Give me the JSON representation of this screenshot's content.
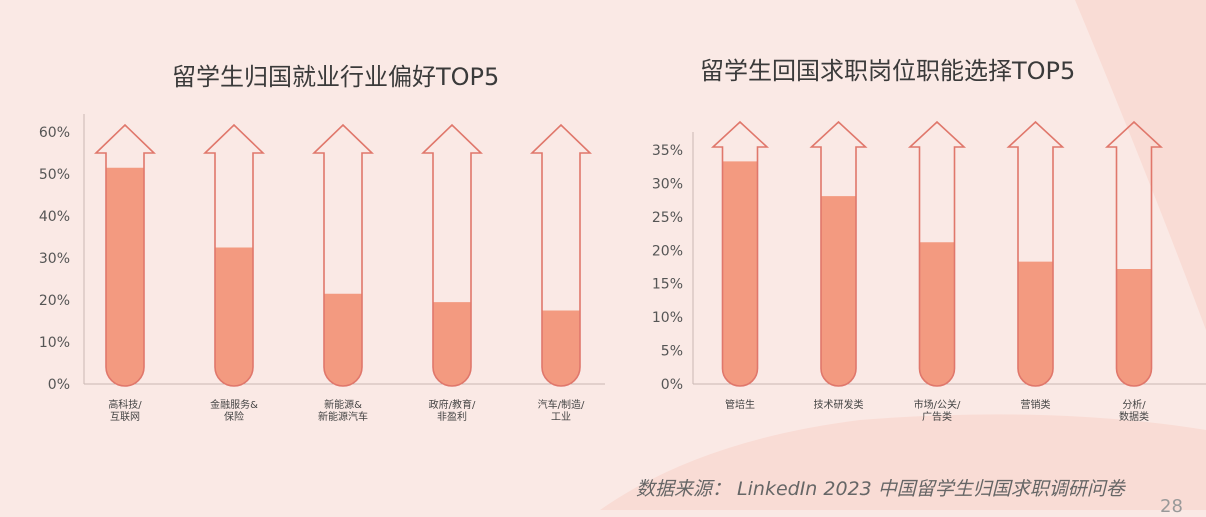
{
  "colors": {
    "background": "#fae9e5",
    "blob": "#f9dcd5",
    "fill": "#f39a80",
    "stroke": "#e0776b",
    "axis": "#c9b7b3"
  },
  "chart_data": [
    {
      "type": "bar",
      "title": "留学生归国就业行业偏好TOP5",
      "categories": [
        [
          "高科技/",
          "互联网"
        ],
        [
          "金融服务&",
          "保险"
        ],
        [
          "新能源&",
          "新能源汽车"
        ],
        [
          "政府/教育/",
          "非盈利"
        ],
        [
          "汽车/制造/",
          "工业"
        ]
      ],
      "values": [
        51.5,
        32.5,
        21.5,
        19.5,
        17.5
      ],
      "ylim": [
        0,
        60
      ],
      "yticks": [
        0,
        10,
        20,
        30,
        40,
        50,
        60
      ],
      "ytick_labels": [
        "0%",
        "10%",
        "20%",
        "30%",
        "40%",
        "50%",
        "60%"
      ],
      "xlabel": "",
      "ylabel": ""
    },
    {
      "type": "bar",
      "title": "留学生回国求职岗位职能选择TOP5",
      "categories": [
        [
          "管培生"
        ],
        [
          "技术研发类"
        ],
        [
          "市场/公关/",
          "广告类"
        ],
        [
          "营销类"
        ],
        [
          "分析/",
          "数据类"
        ]
      ],
      "values": [
        33.3,
        28.1,
        21.2,
        18.3,
        17.2
      ],
      "ylim": [
        0,
        35
      ],
      "yticks": [
        0,
        5,
        10,
        15,
        20,
        25,
        30,
        35
      ],
      "ytick_labels": [
        "0%",
        "5%",
        "10%",
        "15%",
        "20%",
        "25%",
        "30%",
        "35%"
      ],
      "xlabel": "",
      "ylabel": ""
    }
  ],
  "source": "数据来源： LinkedIn 2023 中国留学生归国求职调研问卷",
  "page_number": "28"
}
